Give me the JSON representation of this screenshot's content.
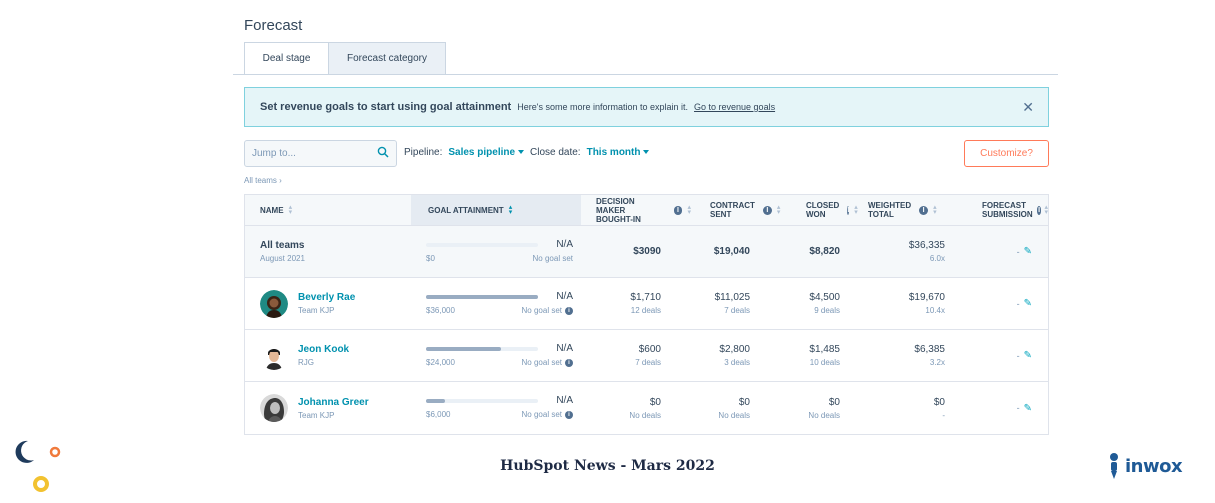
{
  "page": {
    "title": "Forecast"
  },
  "tabs": [
    {
      "label": "Deal stage"
    },
    {
      "label": "Forecast category"
    }
  ],
  "banner": {
    "title": "Set revenue goals to start using goal attainment",
    "text": "Here's some more information to explain it.",
    "link": "Go to revenue goals"
  },
  "search": {
    "placeholder": "Jump to..."
  },
  "filters": {
    "pipeline_label": "Pipeline:",
    "pipeline_value": "Sales pipeline",
    "close_label": "Close date:",
    "close_value": "This month"
  },
  "customize_button": "Customize?",
  "breadcrumb": "All teams",
  "columns": {
    "name": "Name",
    "goal": "Goal attainment",
    "decision_1": "Decision maker",
    "decision_2": "bought-in",
    "contract_1": "Contract",
    "contract_2": "sent",
    "closed_1": "Closed",
    "closed_2": "won",
    "weighted_1": "Weighted",
    "weighted_2": "total",
    "forecast_1": "Forecast",
    "forecast_2": "submission"
  },
  "rows": [
    {
      "name": "All teams",
      "sub": "August 2021",
      "goal_amount": "$0",
      "goal_status": "No goal set",
      "goal_na": "N/A",
      "progress": 0,
      "decision": "$3090",
      "decision_sub": "",
      "contract": "$19,040",
      "contract_sub": "",
      "closed": "$8,820",
      "closed_sub": "",
      "weighted": "$36,335",
      "weighted_sub": "6.0x",
      "forecast": "-"
    },
    {
      "name": "Beverly Rae",
      "sub": "Team KJP",
      "goal_amount": "$36,000",
      "goal_status": "No goal set",
      "goal_na": "N/A",
      "progress": 1.0,
      "decision": "$1,710",
      "decision_sub": "12 deals",
      "contract": "$11,025",
      "contract_sub": "7 deals",
      "closed": "$4,500",
      "closed_sub": "9 deals",
      "weighted": "$19,670",
      "weighted_sub": "10.4x",
      "forecast": "-"
    },
    {
      "name": "Jeon Kook",
      "sub": "RJG",
      "goal_amount": "$24,000",
      "goal_status": "No goal set",
      "goal_na": "N/A",
      "progress": 0.67,
      "decision": "$600",
      "decision_sub": "7 deals",
      "contract": "$2,800",
      "contract_sub": "3 deals",
      "closed": "$1,485",
      "closed_sub": "10 deals",
      "weighted": "$6,385",
      "weighted_sub": "3.2x",
      "forecast": "-"
    },
    {
      "name": "Johanna Greer",
      "sub": "Team KJP",
      "goal_amount": "$6,000",
      "goal_status": "No goal set",
      "goal_na": "N/A",
      "progress": 0.17,
      "decision": "$0",
      "decision_sub": "No deals",
      "contract": "$0",
      "contract_sub": "No deals",
      "closed": "$0",
      "closed_sub": "No deals",
      "weighted": "$0",
      "weighted_sub": "-",
      "forecast": "-"
    }
  ],
  "footer": {
    "title": "HubSpot News - Mars 2022",
    "logo": "inwox"
  },
  "colors": {
    "accent": "#0091ae",
    "orange": "#ff7a59",
    "banner_bg": "#e5f5f8"
  }
}
